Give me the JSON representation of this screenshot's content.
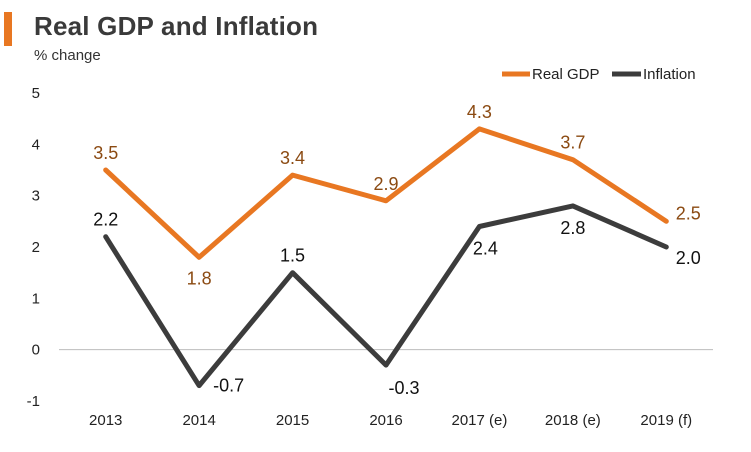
{
  "colors": {
    "accent": "#e87722",
    "real_gdp": "#e87722",
    "real_gdp_label": "#8b4a12",
    "inflation": "#3c3c3c",
    "inflation_label": "#111111",
    "axis": "#bdbdbd",
    "text": "#222222"
  },
  "chart_data": {
    "type": "line",
    "title": "Real GDP and Inflation",
    "subtitle": "% change",
    "xlabel": "",
    "ylabel": "% change",
    "categories": [
      "2013",
      "2014",
      "2015",
      "2016",
      "2017 (e)",
      "2018 (e)",
      "2019 (f)"
    ],
    "ylim": [
      -1,
      5
    ],
    "yticks": [
      "-1",
      "0",
      "1",
      "2",
      "3",
      "4",
      "5"
    ],
    "grid": false,
    "legend_position": "top-right",
    "series": [
      {
        "name": "Real GDP",
        "values": [
          3.5,
          1.8,
          3.4,
          2.9,
          4.3,
          3.7,
          2.5
        ],
        "labels": [
          "3.5",
          "1.8",
          "3.4",
          "2.9",
          "4.3",
          "3.7",
          "2.5"
        ],
        "label_side": [
          "above",
          "below",
          "above",
          "above",
          "above",
          "above",
          "above"
        ]
      },
      {
        "name": "Inflation",
        "values": [
          2.2,
          -0.7,
          1.5,
          -0.3,
          2.4,
          2.8,
          2.0
        ],
        "labels": [
          "2.2",
          "-0.7",
          "1.5",
          "-0.3",
          "2.4",
          "2.8",
          "2.0"
        ],
        "label_side": [
          "above",
          "below",
          "above",
          "below",
          "below",
          "below",
          "below"
        ]
      }
    ]
  }
}
